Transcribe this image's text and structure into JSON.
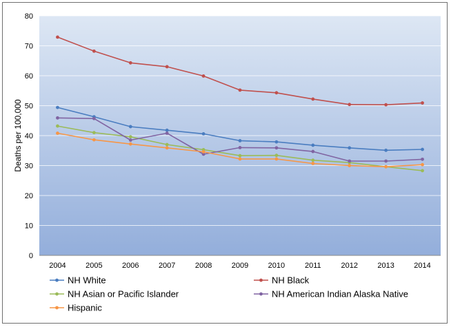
{
  "chart_data": {
    "type": "line",
    "title": "",
    "xlabel": "",
    "ylabel": "Deaths per 100,000",
    "ylim": [
      0,
      80
    ],
    "yticks": [
      0,
      10,
      20,
      30,
      40,
      50,
      60,
      70,
      80
    ],
    "grid": true,
    "legend_position": "bottom",
    "categories": [
      "2004",
      "2005",
      "2006",
      "2007",
      "2008",
      "2009",
      "2010",
      "2011",
      "2012",
      "2013",
      "2014"
    ],
    "series": [
      {
        "name": "NH White",
        "color": "#4a7dc0",
        "values": [
          49.4,
          46.3,
          43.0,
          41.8,
          40.6,
          38.3,
          37.9,
          36.8,
          35.9,
          35.1,
          35.4
        ]
      },
      {
        "name": "NH Black",
        "color": "#c0504d",
        "values": [
          72.9,
          68.2,
          64.3,
          63.0,
          59.9,
          55.2,
          54.3,
          52.2,
          50.4,
          50.3,
          50.9
        ]
      },
      {
        "name": "NH Asian or Pacific Islander",
        "color": "#9bbb59",
        "values": [
          43.2,
          41.0,
          39.6,
          37.0,
          35.3,
          33.3,
          33.4,
          31.8,
          31.0,
          29.6,
          28.3
        ]
      },
      {
        "name": "NH American Indian Alaska Native",
        "color": "#8064a2",
        "values": [
          45.9,
          45.7,
          38.5,
          40.8,
          33.8,
          36.0,
          35.9,
          34.7,
          31.5,
          31.5,
          32.1
        ]
      },
      {
        "name": "Hispanic",
        "color": "#f79646",
        "values": [
          40.8,
          38.6,
          37.2,
          35.9,
          34.6,
          32.2,
          32.2,
          30.7,
          30.0,
          29.6,
          30.3
        ]
      }
    ]
  }
}
